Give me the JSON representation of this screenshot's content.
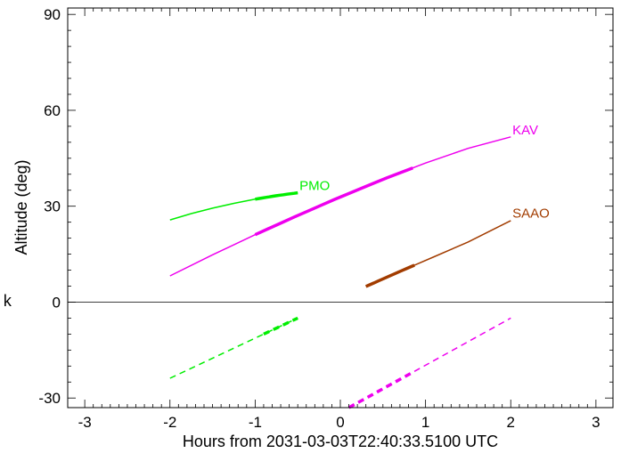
{
  "chart_data": {
    "type": "line",
    "title": "",
    "xlabel": "Hours from 2031-03-03T22:40:33.5100 UTC",
    "ylabel": "Altitude (deg)",
    "xlim": [
      -3.2,
      3.2
    ],
    "ylim": [
      -33,
      92
    ],
    "x_ticks": [
      "-3",
      "-2",
      "-1",
      "0",
      "1",
      "2",
      "3"
    ],
    "y_ticks": [
      "90",
      "60",
      "30",
      "0",
      "-30"
    ],
    "reference_line_y": 0,
    "grid": false,
    "legend": "none (labels placed at line ends)",
    "stray_glyph": "k",
    "series": [
      {
        "name": "PMO",
        "color": "#00ee00",
        "style": "solid",
        "x": [
          -2.0,
          -1.75,
          -1.5,
          -1.25,
          -1.0,
          -0.75,
          -0.5
        ],
        "y": [
          25.7,
          27.7,
          29.4,
          30.9,
          32.2,
          33.3,
          34.2
        ],
        "highlight_x": [
          -1.0,
          -0.5
        ]
      },
      {
        "name": "KAV",
        "color": "#ee00ee",
        "style": "solid",
        "x": [
          -2.0,
          -1.5,
          -1.0,
          -0.5,
          0.0,
          0.5,
          1.0,
          1.5,
          2.0
        ],
        "y": [
          8.2,
          14.8,
          21.1,
          27.1,
          32.9,
          38.4,
          43.5,
          48.1,
          51.7
        ],
        "highlight_x": [
          -1.0,
          0.85
        ]
      },
      {
        "name": "SAAO",
        "color": "#a23c00",
        "style": "solid",
        "x": [
          0.3,
          0.7,
          1.1,
          1.5,
          2.0
        ],
        "y": [
          4.9,
          9.6,
          14.2,
          18.8,
          25.5
        ],
        "highlight_x": [
          0.3,
          0.87
        ]
      },
      {
        "name": "",
        "color": "#00ee00",
        "style": "dashed",
        "x": [
          -2.0,
          -0.5
        ],
        "y": [
          -23.8,
          -5.0
        ],
        "highlight_x": [
          -0.9,
          -0.5
        ]
      },
      {
        "name": "",
        "color": "#ee00ee",
        "style": "dashed",
        "x": [
          0.1,
          2.0
        ],
        "y": [
          -33.0,
          -5.0
        ],
        "highlight_x": [
          0.1,
          0.85
        ]
      }
    ],
    "annotations": [
      {
        "text": "PMO",
        "x": -0.48,
        "y": 35.0,
        "color": "#00ee00"
      },
      {
        "text": "KAV",
        "x": 2.02,
        "y": 52.5,
        "color": "#ee00ee"
      },
      {
        "text": "SAAO",
        "x": 2.02,
        "y": 26.5,
        "color": "#a23c00"
      }
    ]
  }
}
